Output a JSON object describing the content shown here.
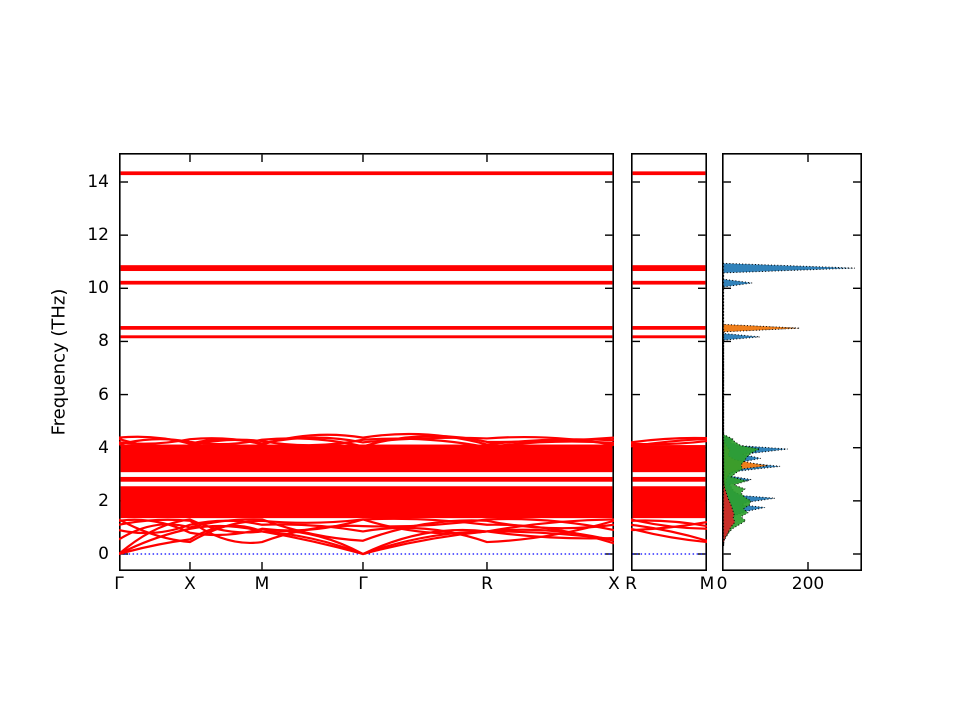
{
  "figure": {
    "ylabel": "Frequency (THz)",
    "band_color": "#ff0000",
    "zero_line_color": "#0000ff",
    "axis_color": "#000000",
    "background": "#ffffff"
  },
  "chart_data": [
    {
      "type": "line",
      "panel": "main",
      "title": "",
      "xlabel": "",
      "ylabel": "Frequency (THz)",
      "ylim": [
        -0.64,
        15.09
      ],
      "yticks": [
        0,
        2,
        4,
        6,
        8,
        10,
        12,
        14
      ],
      "ytick_labels": [
        "0",
        "2",
        "4",
        "6",
        "8",
        "10",
        "12",
        "14"
      ],
      "xtick_labels": [
        "Γ",
        "X",
        "M",
        "Γ",
        "R",
        "X"
      ],
      "xtick_positions": [
        0,
        0.1434,
        0.2889,
        0.4929,
        0.7434,
        1.0
      ],
      "grid": false,
      "zero_line_freq": 0,
      "flat_bands_thz": [
        [
          8.12,
          8.23
        ],
        [
          8.44,
          8.58
        ],
        [
          10.14,
          10.28
        ],
        [
          10.65,
          10.87
        ],
        [
          14.26,
          14.4
        ]
      ],
      "dense_blocks_thz": [
        [
          3.08,
          4.12
        ],
        [
          2.72,
          2.9
        ],
        [
          1.35,
          2.55
        ]
      ],
      "arc_bands": [
        {
          "nodes": [
            4.38,
            4.15,
            4.12,
            4.38,
            4.12,
            4.28
          ],
          "bulges": [
            0.12,
            0.18,
            0.22,
            0.25,
            0.1
          ]
        },
        {
          "nodes": [
            4.2,
            4.32,
            4.16,
            4.2,
            4.35,
            4.1
          ],
          "bulges": [
            -0.1,
            0.1,
            0.2,
            0.08,
            0.15
          ]
        },
        {
          "nodes": [
            4.12,
            4.22,
            4.3,
            4.05,
            4.22,
            4.38
          ],
          "bulges": [
            0.15,
            -0.12,
            0.15,
            0.3,
            -0.05
          ]
        },
        {
          "nodes": [
            4.33,
            4.08,
            4.25,
            4.3,
            4.02,
            4.18
          ],
          "bulges": [
            -0.15,
            0.12,
            -0.18,
            0.15,
            0.12
          ]
        },
        {
          "nodes": [
            0.0,
            0.95,
            0.85,
            0.0,
            0.85,
            0.55
          ],
          "bulges": [
            0.1,
            0.15,
            0.05,
            0.1,
            0.08
          ]
        },
        {
          "nodes": [
            0.0,
            1.3,
            0.85,
            0.0,
            0.85,
            0.6
          ],
          "bulges": [
            0.25,
            -0.2,
            0.3,
            0.35,
            -0.1
          ]
        },
        {
          "nodes": [
            0.0,
            0.55,
            0.85,
            0.0,
            0.85,
            0.5
          ],
          "bulges": [
            0.05,
            0.35,
            0.15,
            0.2,
            0.2
          ]
        },
        {
          "nodes": [
            1.3,
            0.45,
            1.25,
            1.3,
            0.85,
            1.3
          ],
          "bulges": [
            -0.15,
            0.2,
            -0.1,
            -0.25,
            0.1
          ]
        },
        {
          "nodes": [
            1.1,
            1.25,
            0.45,
            1.05,
            1.3,
            0.9
          ],
          "bulges": [
            0.1,
            -0.3,
            0.2,
            -0.1,
            0.15
          ]
        },
        {
          "nodes": [
            0.9,
            1.1,
            1.1,
            0.85,
            0.45,
            1.25
          ],
          "bulges": [
            -0.2,
            0.15,
            0.1,
            0.3,
            -0.15
          ]
        },
        {
          "nodes": [
            1.25,
            0.8,
            0.95,
            1.3,
            1.1,
            0.4
          ],
          "bulges": [
            0.2,
            -0.15,
            -0.2,
            0.1,
            0.2
          ]
        },
        {
          "nodes": [
            0.55,
            1.0,
            1.3,
            0.5,
            1.25,
            1.1
          ],
          "bulges": [
            0.3,
            0.1,
            -0.15,
            0.25,
            -0.2
          ]
        }
      ]
    },
    {
      "type": "line",
      "panel": "mid",
      "title": "",
      "ylim": [
        -0.64,
        15.09
      ],
      "yticks": [
        0,
        2,
        4,
        6,
        8,
        10,
        12,
        14
      ],
      "xtick_labels": [
        "R",
        "M"
      ],
      "xtick_positions": [
        0,
        1.0
      ],
      "grid": false,
      "zero_line_freq": 0,
      "flat_bands_thz": [
        [
          8.12,
          8.23
        ],
        [
          8.44,
          8.58
        ],
        [
          10.14,
          10.28
        ],
        [
          10.65,
          10.87
        ],
        [
          14.26,
          14.4
        ]
      ],
      "dense_blocks_thz": [
        [
          3.08,
          4.1
        ],
        [
          2.72,
          2.9
        ],
        [
          1.35,
          2.55
        ]
      ],
      "arc_bands": [
        {
          "nodes": [
            4.2,
            4.36
          ],
          "bulges": [
            0.06
          ]
        },
        {
          "nodes": [
            4.15,
            4.25
          ],
          "bulges": [
            -0.06
          ]
        },
        {
          "nodes": [
            4.05,
            4.33
          ],
          "bulges": [
            0.04
          ]
        },
        {
          "nodes": [
            1.3,
            0.95
          ],
          "bulges": [
            -0.08
          ]
        },
        {
          "nodes": [
            1.1,
            0.5
          ],
          "bulges": [
            0.06
          ]
        },
        {
          "nodes": [
            0.9,
            1.2
          ],
          "bulges": [
            -0.05
          ]
        },
        {
          "nodes": [
            1.25,
            1.05
          ],
          "bulges": [
            0.08
          ]
        },
        {
          "nodes": [
            0.95,
            0.45
          ],
          "bulges": [
            -0.06
          ]
        }
      ]
    },
    {
      "type": "area",
      "panel": "dos",
      "title": "",
      "xlabel": "",
      "xlim": [
        0,
        326
      ],
      "xticks": [
        0,
        200
      ],
      "xtick_labels": [
        "0",
        "200"
      ],
      "ylim": [
        -0.64,
        15.09
      ],
      "yticks": [
        0,
        2,
        4,
        6,
        8,
        10,
        12,
        14
      ],
      "grid": false,
      "series": [
        {
          "name": "dos-series-blue",
          "color": "#1f77b4",
          "points": [
            [
              0,
              0.3
            ],
            [
              2,
              0.45
            ],
            [
              5,
              0.6
            ],
            [
              8,
              0.8
            ],
            [
              14,
              1.0
            ],
            [
              18,
              1.2
            ],
            [
              30,
              1.45
            ],
            [
              55,
              1.6
            ],
            [
              100,
              1.75
            ],
            [
              45,
              1.85
            ],
            [
              60,
              1.95
            ],
            [
              123,
              2.1
            ],
            [
              45,
              2.2
            ],
            [
              28,
              2.35
            ],
            [
              22,
              2.5
            ],
            [
              18,
              2.62
            ],
            [
              68,
              2.8
            ],
            [
              14,
              2.95
            ],
            [
              28,
              3.1
            ],
            [
              135,
              3.3
            ],
            [
              42,
              3.45
            ],
            [
              90,
              3.6
            ],
            [
              48,
              3.75
            ],
            [
              153,
              3.95
            ],
            [
              40,
              4.08
            ],
            [
              18,
              4.2
            ],
            [
              26,
              4.32
            ],
            [
              4,
              4.45
            ],
            [
              0,
              4.55
            ],
            [
              0,
              8.05
            ],
            [
              88,
              8.17
            ],
            [
              0,
              8.3
            ],
            [
              0,
              8.38
            ],
            [
              170,
              8.5
            ],
            [
              0,
              8.62
            ],
            [
              0,
              10.05
            ],
            [
              70,
              10.2
            ],
            [
              0,
              10.34
            ],
            [
              0,
              10.58
            ],
            [
              309,
              10.76
            ],
            [
              0,
              10.94
            ]
          ]
        },
        {
          "name": "dos-series-orange",
          "color": "#ff7f0e",
          "points": [
            [
              0,
              0.4
            ],
            [
              3,
              0.8
            ],
            [
              6,
              1.2
            ],
            [
              9,
              1.6
            ],
            [
              12,
              2.0
            ],
            [
              10,
              2.3
            ],
            [
              8,
              2.6
            ],
            [
              11,
              2.85
            ],
            [
              18,
              3.05
            ],
            [
              45,
              3.2
            ],
            [
              107,
              3.32
            ],
            [
              70,
              3.42
            ],
            [
              30,
              3.55
            ],
            [
              14,
              3.7
            ],
            [
              18,
              3.9
            ],
            [
              9,
              4.1
            ],
            [
              4,
              4.3
            ],
            [
              0,
              4.45
            ],
            [
              0,
              8.36
            ],
            [
              181,
              8.5
            ],
            [
              0,
              8.64
            ]
          ]
        },
        {
          "name": "dos-series-green",
          "color": "#2ca02c",
          "points": [
            [
              0,
              0.35
            ],
            [
              4,
              0.5
            ],
            [
              10,
              0.65
            ],
            [
              16,
              0.8
            ],
            [
              24,
              0.95
            ],
            [
              40,
              1.1
            ],
            [
              55,
              1.25
            ],
            [
              44,
              1.4
            ],
            [
              60,
              1.55
            ],
            [
              50,
              1.7
            ],
            [
              64,
              1.85
            ],
            [
              67,
              2.0
            ],
            [
              52,
              2.15
            ],
            [
              44,
              2.3
            ],
            [
              53,
              2.45
            ],
            [
              28,
              2.6
            ],
            [
              58,
              2.75
            ],
            [
              22,
              2.9
            ],
            [
              32,
              3.05
            ],
            [
              48,
              3.2
            ],
            [
              44,
              3.35
            ],
            [
              52,
              3.5
            ],
            [
              58,
              3.65
            ],
            [
              68,
              3.8
            ],
            [
              88,
              3.95
            ],
            [
              44,
              4.08
            ],
            [
              30,
              4.22
            ],
            [
              22,
              4.35
            ],
            [
              0,
              4.5
            ]
          ]
        },
        {
          "name": "dos-series-red",
          "color": "#d62728",
          "points": [
            [
              0,
              0.4
            ],
            [
              7,
              0.6
            ],
            [
              14,
              0.8
            ],
            [
              20,
              1.0
            ],
            [
              30,
              1.2
            ],
            [
              26,
              1.35
            ],
            [
              28,
              1.5
            ],
            [
              25,
              1.65
            ],
            [
              22,
              1.8
            ],
            [
              18,
              1.95
            ],
            [
              14,
              2.1
            ],
            [
              10,
              2.3
            ],
            [
              6,
              2.5
            ],
            [
              4,
              2.7
            ],
            [
              3,
              2.9
            ],
            [
              2,
              3.2
            ],
            [
              1,
              3.6
            ],
            [
              1,
              4.0
            ],
            [
              0,
              4.3
            ]
          ]
        }
      ]
    }
  ]
}
